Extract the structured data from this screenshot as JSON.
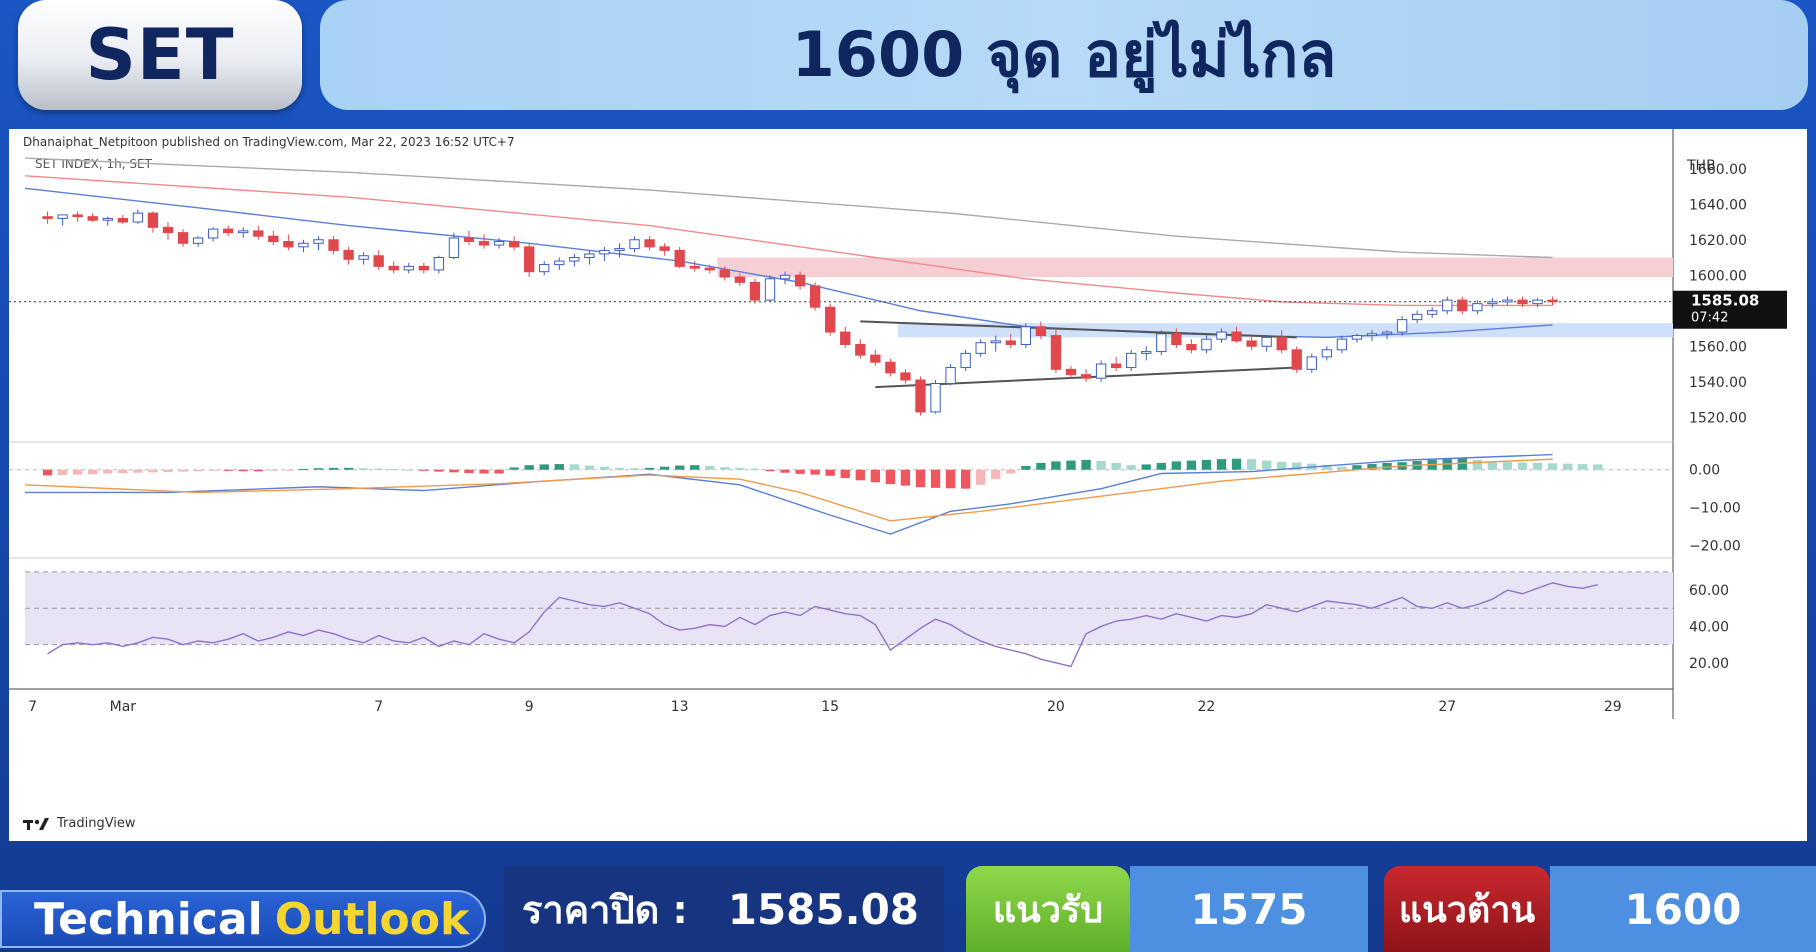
{
  "header": {
    "badge": "SET",
    "title": "1600 จุด อยู่ไม่ไกล"
  },
  "chart_header": {
    "published": "Dhanaiphat_Netpitoon published on TradingView.com, Mar 22, 2023 16:52 UTC+7",
    "symbol": "SET INDEX, 1h, SET",
    "currency": "THB",
    "watermark": "TradingView"
  },
  "chart_data": [
    {
      "type": "line",
      "panel": "price-candlestick",
      "ylim": [
        1510,
        1670
      ],
      "yticks": [
        "1660.00",
        "1640.00",
        "1620.00",
        "1600.00",
        "1580.00",
        "1560.00",
        "1540.00",
        "1520.00"
      ],
      "yticks_values": [
        1660,
        1640,
        1620,
        1600,
        1580,
        1560,
        1540,
        1520
      ],
      "xticks": [
        "7",
        "Mar",
        "7",
        "9",
        "13",
        "15",
        "20",
        "22",
        "27",
        "29"
      ],
      "xticks_values": [
        -1,
        5,
        22,
        32,
        42,
        52,
        67,
        77,
        93,
        104
      ],
      "x_range": [
        -1.5,
        108
      ],
      "last_price": "1585.08",
      "countdown": "07:42",
      "last_value": 1585.08,
      "zones": [
        {
          "name": "resistance-zone",
          "from": 1599,
          "to": 1610,
          "color": "#f6cfd4"
        },
        {
          "name": "support-zone",
          "from": 1565,
          "to": 1573,
          "color": "#cfe0fa"
        }
      ],
      "trendlines": [
        {
          "x1": 54,
          "y1": 1574,
          "x2": 83,
          "y2": 1565
        },
        {
          "x1": 55,
          "y1": 1537,
          "x2": 83,
          "y2": 1548
        }
      ],
      "candles": [
        [
          1633,
          1636,
          1629,
          1632
        ],
        [
          1632,
          1634,
          1628,
          1634
        ],
        [
          1634,
          1636,
          1630,
          1633
        ],
        [
          1633,
          1635,
          1630,
          1631
        ],
        [
          1631,
          1633,
          1628,
          1632
        ],
        [
          1632,
          1634,
          1629,
          1630
        ],
        [
          1630,
          1637,
          1629,
          1635
        ],
        [
          1635,
          1636,
          1624,
          1627
        ],
        [
          1627,
          1630,
          1620,
          1624
        ],
        [
          1624,
          1626,
          1616,
          1618
        ],
        [
          1618,
          1622,
          1616,
          1621
        ],
        [
          1621,
          1627,
          1619,
          1626
        ],
        [
          1626,
          1628,
          1622,
          1624
        ],
        [
          1624,
          1627,
          1621,
          1625
        ],
        [
          1625,
          1628,
          1620,
          1622
        ],
        [
          1622,
          1625,
          1617,
          1619
        ],
        [
          1619,
          1623,
          1614,
          1616
        ],
        [
          1616,
          1620,
          1613,
          1618
        ],
        [
          1618,
          1622,
          1614,
          1620
        ],
        [
          1620,
          1622,
          1612,
          1614
        ],
        [
          1614,
          1616,
          1606,
          1609
        ],
        [
          1609,
          1613,
          1606,
          1611
        ],
        [
          1611,
          1614,
          1603,
          1605
        ],
        [
          1605,
          1608,
          1601,
          1603
        ],
        [
          1603,
          1607,
          1601,
          1605
        ],
        [
          1605,
          1607,
          1601,
          1603
        ],
        [
          1603,
          1611,
          1601,
          1610
        ],
        [
          1610,
          1624,
          1609,
          1621
        ],
        [
          1621,
          1625,
          1617,
          1619
        ],
        [
          1619,
          1623,
          1615,
          1617
        ],
        [
          1617,
          1621,
          1615,
          1619
        ],
        [
          1619,
          1622,
          1614,
          1616
        ],
        [
          1616,
          1618,
          1599,
          1602
        ],
        [
          1602,
          1608,
          1600,
          1606
        ],
        [
          1606,
          1610,
          1603,
          1608
        ],
        [
          1608,
          1612,
          1605,
          1610
        ],
        [
          1610,
          1614,
          1606,
          1612
        ],
        [
          1612,
          1616,
          1608,
          1614
        ],
        [
          1614,
          1618,
          1610,
          1615
        ],
        [
          1615,
          1622,
          1613,
          1620
        ],
        [
          1620,
          1622,
          1614,
          1616
        ],
        [
          1616,
          1618,
          1611,
          1614
        ],
        [
          1614,
          1616,
          1604,
          1605
        ],
        [
          1605,
          1608,
          1602,
          1604
        ],
        [
          1604,
          1606,
          1601,
          1603
        ],
        [
          1603,
          1605,
          1597,
          1599
        ],
        [
          1599,
          1601,
          1594,
          1596
        ],
        [
          1596,
          1598,
          1584,
          1586
        ],
        [
          1586,
          1600,
          1585,
          1598
        ],
        [
          1598,
          1602,
          1595,
          1600
        ],
        [
          1600,
          1602,
          1592,
          1594
        ],
        [
          1594,
          1596,
          1580,
          1582
        ],
        [
          1582,
          1584,
          1566,
          1568
        ],
        [
          1568,
          1571,
          1559,
          1561
        ],
        [
          1561,
          1564,
          1553,
          1555
        ],
        [
          1555,
          1558,
          1549,
          1551
        ],
        [
          1551,
          1553,
          1543,
          1545
        ],
        [
          1545,
          1547,
          1539,
          1541
        ],
        [
          1541,
          1543,
          1521,
          1523
        ],
        [
          1523,
          1541,
          1522,
          1539
        ],
        [
          1539,
          1550,
          1538,
          1548
        ],
        [
          1548,
          1558,
          1546,
          1556
        ],
        [
          1556,
          1564,
          1554,
          1562
        ],
        [
          1562,
          1566,
          1557,
          1563
        ],
        [
          1563,
          1567,
          1559,
          1561
        ],
        [
          1561,
          1573,
          1559,
          1571
        ],
        [
          1571,
          1574,
          1564,
          1566
        ],
        [
          1566,
          1570,
          1545,
          1547
        ],
        [
          1547,
          1549,
          1542,
          1544
        ],
        [
          1544,
          1547,
          1540,
          1542
        ],
        [
          1542,
          1552,
          1540,
          1550
        ],
        [
          1550,
          1554,
          1546,
          1548
        ],
        [
          1548,
          1558,
          1546,
          1556
        ],
        [
          1556,
          1560,
          1552,
          1557
        ],
        [
          1557,
          1569,
          1555,
          1567
        ],
        [
          1567,
          1570,
          1559,
          1561
        ],
        [
          1561,
          1564,
          1556,
          1558
        ],
        [
          1558,
          1566,
          1556,
          1564
        ],
        [
          1564,
          1570,
          1562,
          1568
        ],
        [
          1568,
          1571,
          1562,
          1563
        ],
        [
          1563,
          1566,
          1558,
          1560
        ],
        [
          1560,
          1566,
          1557,
          1565
        ],
        [
          1565,
          1569,
          1556,
          1558
        ],
        [
          1558,
          1560,
          1545,
          1547
        ],
        [
          1547,
          1556,
          1545,
          1554
        ],
        [
          1554,
          1560,
          1552,
          1558
        ],
        [
          1558,
          1566,
          1556,
          1564
        ],
        [
          1564,
          1567,
          1562,
          1566
        ],
        [
          1566,
          1569,
          1563,
          1567
        ],
        [
          1567,
          1569,
          1564,
          1568
        ],
        [
          1568,
          1577,
          1566,
          1575
        ],
        [
          1575,
          1580,
          1573,
          1578
        ],
        [
          1578,
          1582,
          1576,
          1580
        ],
        [
          1580,
          1588,
          1578,
          1586
        ],
        [
          1586,
          1588,
          1578,
          1580
        ],
        [
          1580,
          1586,
          1578,
          1584
        ],
        [
          1584,
          1587,
          1582,
          1585
        ],
        [
          1585,
          1588,
          1583,
          1586
        ],
        [
          1586,
          1588,
          1582,
          1584
        ],
        [
          1584,
          1587,
          1582,
          1586
        ],
        [
          1586,
          1588,
          1583,
          1585.08
        ]
      ],
      "series": [
        {
          "color": "#aaaaaa",
          "points": [
            [
              -1.5,
              1666
            ],
            [
              20,
              1658
            ],
            [
              40,
              1648
            ],
            [
              60,
              1635
            ],
            [
              75,
              1622
            ],
            [
              90,
              1613
            ],
            [
              100,
              1610
            ]
          ]
        },
        {
          "color": "#f08a8a",
          "points": [
            [
              -1.5,
              1656
            ],
            [
              20,
              1644
            ],
            [
              40,
              1628
            ],
            [
              55,
              1610
            ],
            [
              65,
              1598
            ],
            [
              75,
              1590
            ],
            [
              82,
              1585
            ],
            [
              90,
              1583
            ],
            [
              100,
              1583
            ]
          ]
        },
        {
          "color": "#5b7fd8",
          "points": [
            [
              -1.5,
              1649
            ],
            [
              10,
              1638
            ],
            [
              20,
              1628
            ],
            [
              32,
              1618
            ],
            [
              42,
              1608
            ],
            [
              50,
              1596
            ],
            [
              58,
              1580
            ],
            [
              65,
              1571
            ],
            [
              75,
              1567
            ],
            [
              85,
              1565
            ],
            [
              93,
              1568
            ],
            [
              100,
              1572
            ]
          ]
        }
      ]
    },
    {
      "type": "bar",
      "panel": "macd",
      "ylim": [
        -22,
        6
      ],
      "yticks": [
        "0.00",
        "−10.00",
        "−20.00"
      ],
      "yticks_values": [
        0,
        -10,
        -20
      ],
      "histogram": [
        -1.5,
        -1.4,
        -1.3,
        -1.2,
        -1,
        -0.9,
        -0.8,
        -0.7,
        -0.6,
        -0.5,
        -0.4,
        -0.3,
        -0.3,
        -0.4,
        -0.4,
        -0.3,
        -0.2,
        0.2,
        0.4,
        0.5,
        0.5,
        0.4,
        0.3,
        0.2,
        0,
        -0.3,
        -0.5,
        -0.7,
        -0.9,
        -1,
        -1,
        0.6,
        1.2,
        1.4,
        1.5,
        1.4,
        1.1,
        0.8,
        0.5,
        0.4,
        0.5,
        0.8,
        1.1,
        1.2,
        1,
        0.7,
        0.5,
        0.3,
        -0.4,
        -0.8,
        -1.1,
        -1.3,
        -1.6,
        -2.2,
        -2.8,
        -3.3,
        -3.8,
        -4.2,
        -4.6,
        -4.8,
        -4.9,
        -5,
        -4,
        -2.5,
        -1,
        1,
        1.8,
        2.2,
        2.4,
        2.6,
        2.3,
        1.8,
        1.2,
        1.4,
        1.8,
        2.2,
        2.4,
        2.6,
        2.8,
        2.9,
        2.8,
        2.4,
        2.1,
        1.9,
        1.6,
        1.3,
        0.8,
        1.2,
        1.5,
        1.8,
        2,
        2.3,
        2.6,
        2.9,
        3,
        2.6,
        2.2,
        2,
        1.9,
        1.8,
        1.7,
        1.6,
        1.5,
        1.4
      ],
      "series": [
        {
          "color": "#5b7fd8",
          "points": [
            [
              -1.5,
              -6
            ],
            [
              8,
              -6
            ],
            [
              18,
              -4.5
            ],
            [
              25,
              -5.5
            ],
            [
              32,
              -3.3
            ],
            [
              40,
              -1.2
            ],
            [
              46,
              -4
            ],
            [
              52,
              -12
            ],
            [
              56,
              -17
            ],
            [
              60,
              -11
            ],
            [
              64,
              -9
            ],
            [
              70,
              -5
            ],
            [
              74,
              -1
            ],
            [
              80,
              -0.5
            ],
            [
              90,
              2.5
            ],
            [
              100,
              4
            ]
          ]
        },
        {
          "color": "#f19a4a",
          "points": [
            [
              -1.5,
              -4
            ],
            [
              10,
              -6
            ],
            [
              20,
              -5
            ],
            [
              30,
              -3.7
            ],
            [
              40,
              -1.4
            ],
            [
              46,
              -2.5
            ],
            [
              50,
              -6
            ],
            [
              56,
              -13.5
            ],
            [
              62,
              -11
            ],
            [
              70,
              -7
            ],
            [
              78,
              -3
            ],
            [
              90,
              1
            ],
            [
              100,
              2.8
            ]
          ]
        }
      ]
    },
    {
      "type": "line",
      "panel": "rsi",
      "ylim": [
        10,
        76
      ],
      "yticks": [
        "60.00",
        "40.00",
        "20.00"
      ],
      "yticks_values": [
        60,
        40,
        20
      ],
      "bands": [
        30,
        50,
        70
      ],
      "values": [
        25,
        30,
        31,
        30,
        31,
        29,
        31,
        34,
        33,
        30,
        32,
        31,
        33,
        36,
        32,
        34,
        37,
        35,
        38,
        36,
        33,
        31,
        35,
        32,
        31,
        34,
        29,
        32,
        30,
        36,
        33,
        31,
        37,
        48,
        56,
        54,
        52,
        51,
        53,
        50,
        47,
        41,
        38,
        39,
        41,
        40,
        45,
        41,
        46,
        48,
        46,
        51,
        49,
        47,
        46,
        41,
        27,
        33,
        39,
        44,
        41,
        36,
        32,
        29,
        27,
        25,
        22,
        20,
        18,
        36,
        40,
        43,
        44,
        46,
        44,
        47,
        45,
        43,
        46,
        45,
        47,
        52,
        50,
        48,
        51,
        54,
        53,
        52,
        50,
        53,
        56,
        51,
        50,
        53,
        50,
        52,
        55,
        60,
        58,
        61,
        64,
        62,
        61,
        63
      ]
    }
  ],
  "bottom": {
    "technical": "Technical",
    "outlook": "Outlook",
    "close_label": "ราคาปิด :",
    "close_value": "1585.08",
    "support_label": "แนวรับ",
    "support_value": "1575",
    "resistance_label": "แนวต้าน",
    "resistance_value": "1600"
  },
  "colors": {
    "up": "#3d5cc9",
    "down": "#e0484e",
    "hist_up_strong": "#2f9a7e",
    "hist_up_weak": "#a6d9cd",
    "hist_down_strong": "#f0565d",
    "hist_down_weak": "#f7b6b8",
    "rsi_line": "#8f72c9",
    "rsi_band": "#e9e3f6"
  }
}
